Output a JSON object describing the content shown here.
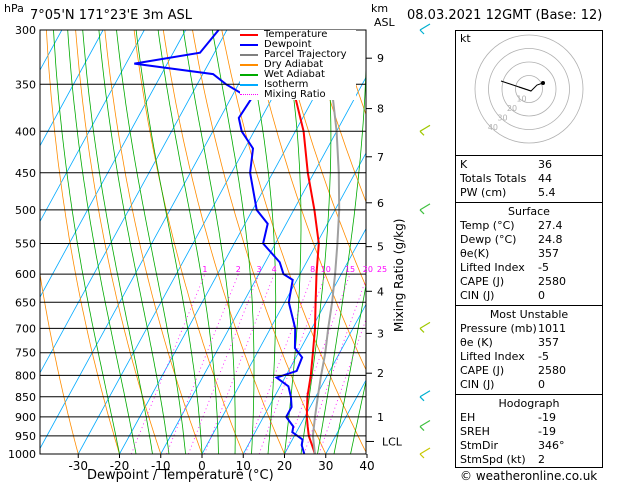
{
  "header": {
    "location": "7°05'N  171°23'E  3m  ASL",
    "date": "08.03.2021  12GMT  (Base: 12)"
  },
  "axis": {
    "hpa_unit": "hPa",
    "km_unit": "km",
    "asl_unit": "ASL",
    "xlabel": "Dewpoint / Temperature (°C)",
    "mixing_label": "Mixing Ratio (g/kg)",
    "lcl_label": "LCL",
    "hodo_label": "kt"
  },
  "legend": {
    "items": [
      {
        "label": "Temperature",
        "color": "#ff0000"
      },
      {
        "label": "Dewpoint",
        "color": "#0000ff"
      },
      {
        "label": "Parcel Trajectory",
        "color": "#808080"
      },
      {
        "label": "Dry Adiabat",
        "color": "#ff8c00"
      },
      {
        "label": "Wet Adiabat",
        "color": "#00aa00"
      },
      {
        "label": "Isotherm",
        "color": "#00aaff"
      },
      {
        "label": "Mixing Ratio",
        "color": "#ff00ff"
      }
    ]
  },
  "indices": {
    "top": [
      {
        "key": "K",
        "value": "36"
      },
      {
        "key": "Totals Totals",
        "value": "44"
      },
      {
        "key": "PW (cm)",
        "value": "5.4"
      }
    ],
    "surface_title": "Surface",
    "surface": [
      {
        "key": "Temp (°C)",
        "value": "27.4"
      },
      {
        "key": "Dewp (°C)",
        "value": "24.8"
      },
      {
        "key": "θe(K)",
        "value": "357"
      },
      {
        "key": "Lifted Index",
        "value": "-5"
      },
      {
        "key": "CAPE (J)",
        "value": "2580"
      },
      {
        "key": "CIN (J)",
        "value": "0"
      }
    ],
    "mu_title": "Most Unstable",
    "mu": [
      {
        "key": "Pressure (mb)",
        "value": "1011"
      },
      {
        "key": "θe (K)",
        "value": "357"
      },
      {
        "key": "Lifted Index",
        "value": "-5"
      },
      {
        "key": "CAPE (J)",
        "value": "2580"
      },
      {
        "key": "CIN (J)",
        "value": "0"
      }
    ],
    "hodo_title": "Hodograph",
    "hodo": [
      {
        "key": "EH",
        "value": "-19"
      },
      {
        "key": "SREH",
        "value": "-19"
      },
      {
        "key": "StmDir",
        "value": "346°"
      },
      {
        "key": "StmSpd (kt)",
        "value": "2"
      }
    ]
  },
  "copyright": "© weatheronline.co.uk",
  "chart_data": {
    "type": "line",
    "title": "",
    "xlabel": "Dewpoint / Temperature (°C)",
    "ylabel": "hPa",
    "pressure_levels": [
      300,
      350,
      400,
      450,
      500,
      550,
      600,
      650,
      700,
      750,
      800,
      850,
      900,
      950,
      1000
    ],
    "temperature_ticks": [
      -30,
      -20,
      -10,
      0,
      10,
      20,
      30,
      40
    ],
    "xlim": [
      -35,
      40
    ],
    "ylim": [
      1000,
      300
    ],
    "km_ticks": [
      {
        "km": 1,
        "p": 900
      },
      {
        "km": 2,
        "p": 795
      },
      {
        "km": 3,
        "p": 710
      },
      {
        "km": 4,
        "p": 630
      },
      {
        "km": 5,
        "p": 555
      },
      {
        "km": 6,
        "p": 490
      },
      {
        "km": 7,
        "p": 430
      },
      {
        "km": 8,
        "p": 375
      },
      {
        "km": 9,
        "p": 325
      }
    ],
    "mixing_ratios": [
      1,
      2,
      3,
      4,
      8,
      10,
      15,
      20,
      25
    ],
    "mixing_ratio_label_p": 600,
    "series": [
      {
        "name": "Temperature",
        "color": "#ff0000",
        "points": [
          [
            1000,
            27.4
          ],
          [
            975,
            25.5
          ],
          [
            950,
            23.5
          ],
          [
            925,
            22.0
          ],
          [
            900,
            20.5
          ],
          [
            850,
            18.0
          ],
          [
            800,
            16.0
          ],
          [
            750,
            13.5
          ],
          [
            700,
            10.8
          ],
          [
            650,
            7.5
          ],
          [
            600,
            4.0
          ],
          [
            550,
            0.5
          ],
          [
            500,
            -5.0
          ],
          [
            450,
            -11.5
          ],
          [
            400,
            -18.0
          ],
          [
            350,
            -27.0
          ],
          [
            300,
            -36.5
          ]
        ]
      },
      {
        "name": "Dewpoint",
        "color": "#0000ff",
        "points": [
          [
            1000,
            24.8
          ],
          [
            975,
            23.0
          ],
          [
            960,
            22.5
          ],
          [
            940,
            19.0
          ],
          [
            925,
            18.5
          ],
          [
            900,
            15.5
          ],
          [
            875,
            15.5
          ],
          [
            850,
            14.0
          ],
          [
            825,
            12.0
          ],
          [
            805,
            8.0
          ],
          [
            790,
            12.0
          ],
          [
            760,
            11.5
          ],
          [
            740,
            8.5
          ],
          [
            700,
            6.0
          ],
          [
            650,
            1.0
          ],
          [
            610,
            -1.0
          ],
          [
            600,
            -4.0
          ],
          [
            580,
            -6.5
          ],
          [
            550,
            -13.0
          ],
          [
            520,
            -14.5
          ],
          [
            500,
            -19.0
          ],
          [
            450,
            -25.5
          ],
          [
            420,
            -28.0
          ],
          [
            400,
            -33.0
          ],
          [
            385,
            -35.5
          ],
          [
            365,
            -35.0
          ],
          [
            350,
            -43.0
          ],
          [
            340,
            -47.5
          ],
          [
            330,
            -68.0
          ],
          [
            320,
            -53.5
          ],
          [
            300,
            -52.0
          ]
        ]
      },
      {
        "name": "Parcel Trajectory",
        "color": "#a0a0a0",
        "points": [
          [
            1000,
            27.4
          ],
          [
            950,
            24.5
          ],
          [
            900,
            22.5
          ],
          [
            850,
            20.5
          ],
          [
            800,
            18.5
          ],
          [
            750,
            16.5
          ],
          [
            700,
            14.0
          ],
          [
            650,
            11.5
          ],
          [
            600,
            8.5
          ],
          [
            550,
            5.0
          ],
          [
            500,
            1.0
          ],
          [
            450,
            -4.0
          ],
          [
            400,
            -10.0
          ],
          [
            350,
            -17.5
          ],
          [
            300,
            -27.0
          ]
        ]
      }
    ],
    "wind_barbs": [
      {
        "p": 300,
        "color": "#00b0d0"
      },
      {
        "p": 400,
        "color": "#a0c800"
      },
      {
        "p": 500,
        "color": "#40c040"
      },
      {
        "p": 700,
        "color": "#a0c800"
      },
      {
        "p": 850,
        "color": "#00b0d0"
      },
      {
        "p": 925,
        "color": "#40c040"
      },
      {
        "p": 1000,
        "color": "#c8c800"
      }
    ],
    "hodograph": {
      "rings_kt": [
        10,
        20,
        30,
        40
      ],
      "ring_labels": [
        "10",
        "20",
        "30",
        "40"
      ],
      "label_unit": "kt"
    }
  }
}
